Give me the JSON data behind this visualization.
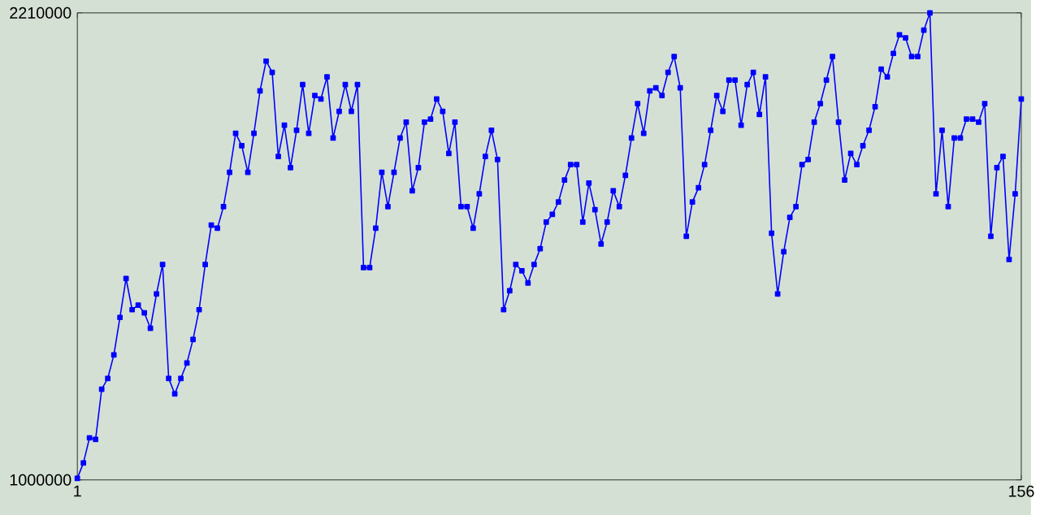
{
  "chart_data": {
    "type": "line",
    "color": "#0000ff",
    "marker": "square",
    "x": [
      1,
      2,
      3,
      4,
      5,
      6,
      7,
      8,
      9,
      10,
      11,
      12,
      13,
      14,
      15,
      16,
      17,
      18,
      19,
      20,
      21,
      22,
      23,
      24,
      25,
      26,
      27,
      28,
      29,
      30,
      31,
      32,
      33,
      34,
      35,
      36,
      37,
      38,
      39,
      40,
      41,
      42,
      43,
      44,
      45,
      46,
      47,
      48,
      49,
      50,
      51,
      52,
      53,
      54,
      55,
      56,
      57,
      58,
      59,
      60,
      61,
      62,
      63,
      64,
      65,
      66,
      67,
      68,
      69,
      70,
      71,
      72,
      73,
      74,
      75,
      76,
      77,
      78,
      79,
      80,
      81,
      82,
      83,
      84,
      85,
      86,
      87,
      88,
      89,
      90,
      91,
      92,
      93,
      94,
      95,
      96,
      97,
      98,
      99,
      100,
      101,
      102,
      103,
      104,
      105,
      106,
      107,
      108,
      109,
      110,
      111,
      112,
      113,
      114,
      115,
      116,
      117,
      118,
      119,
      120,
      121,
      122,
      123,
      124,
      125,
      126,
      127,
      128,
      129,
      130,
      131,
      132,
      133,
      134,
      135,
      136,
      137,
      138,
      139,
      140,
      141,
      142,
      143,
      144,
      145,
      146,
      147,
      148,
      149,
      150,
      151,
      152,
      153,
      154,
      155,
      156
    ],
    "values": [
      1004000,
      1044000,
      1109000,
      1105000,
      1235000,
      1263000,
      1324000,
      1421000,
      1522000,
      1441000,
      1453000,
      1433000,
      1393000,
      1482000,
      1558000,
      1263000,
      1223000,
      1263000,
      1303000,
      1364000,
      1441000,
      1558000,
      1660000,
      1652000,
      1708000,
      1797000,
      1898000,
      1866000,
      1797000,
      1898000,
      2008000,
      2085000,
      2056000,
      1838000,
      1919000,
      1809000,
      1906000,
      2024000,
      1898000,
      1996000,
      1987000,
      2044000,
      1886000,
      1955000,
      2024000,
      1955000,
      2024000,
      1550000,
      1550000,
      1652000,
      1797000,
      1708000,
      1797000,
      1886000,
      1927000,
      1749000,
      1809000,
      1927000,
      1935000,
      1987000,
      1955000,
      1846000,
      1927000,
      1708000,
      1708000,
      1652000,
      1741000,
      1838000,
      1906000,
      1830000,
      1441000,
      1490000,
      1558000,
      1542000,
      1510000,
      1558000,
      1599000,
      1668000,
      1688000,
      1720000,
      1777000,
      1817000,
      1817000,
      1668000,
      1769000,
      1700000,
      1611000,
      1668000,
      1749000,
      1708000,
      1789000,
      1886000,
      1975000,
      1898000,
      2008000,
      2016000,
      1996000,
      2056000,
      2097000,
      2016000,
      1631000,
      1720000,
      1757000,
      1817000,
      1906000,
      1996000,
      1955000,
      2036000,
      2036000,
      1919000,
      2024000,
      2056000,
      1947000,
      2044000,
      1639000,
      1482000,
      1591000,
      1680000,
      1708000,
      1817000,
      1830000,
      1927000,
      1975000,
      2036000,
      2097000,
      1927000,
      1777000,
      1846000,
      1817000,
      1866000,
      1906000,
      1967000,
      2064000,
      2044000,
      2105000,
      2153000,
      2145000,
      2097000,
      2097000,
      2165000,
      2210000,
      1741000,
      1906000,
      1708000,
      1886000,
      1886000,
      1935000,
      1935000,
      1927000,
      1975000,
      1631000,
      1809000,
      1838000,
      1571000,
      1741000,
      1987000
    ],
    "xlim": [
      1,
      156
    ],
    "ylim": [
      1000000,
      2210000
    ],
    "xticks": [
      1,
      156
    ],
    "yticks": [
      1000000,
      2210000
    ]
  }
}
